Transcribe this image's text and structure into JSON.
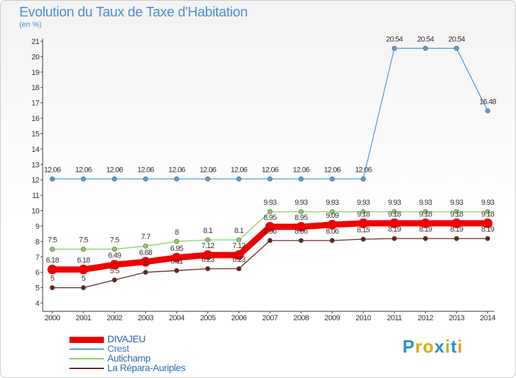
{
  "title": "Evolution du Taux de Taxe d'Habitation",
  "unit_label": "(en %)",
  "colors": {
    "title": "#4a8fd4",
    "axis": "#333333",
    "grid": "#d8d8d8"
  },
  "logo": {
    "text": "Proxiti",
    "colors": [
      "#2a8fd0",
      "#e0a800",
      "#e0a800",
      "#2a8fd0",
      "#9bc820",
      "#2a8fd0",
      "#e0a800"
    ]
  },
  "chart_data": {
    "type": "line",
    "title": "Evolution du Taux de Taxe d'Habitation",
    "ylabel": "(en %)",
    "xlabel": "",
    "x": [
      "2000",
      "2001",
      "2002",
      "2003",
      "2004",
      "2005",
      "2006",
      "2007",
      "2008",
      "2009",
      "2010",
      "2011",
      "2012",
      "2013",
      "2014"
    ],
    "ylim": [
      4,
      21
    ],
    "yticks": [
      4,
      5,
      6,
      7,
      8,
      9,
      10,
      11,
      12,
      13,
      14,
      15,
      16,
      17,
      18,
      19,
      20,
      21
    ],
    "grid": false,
    "legend_position": "bottom-left",
    "series": [
      {
        "name": "DIVAJEU",
        "color": "#ee0000",
        "style": "thick",
        "values": [
          6.18,
          6.18,
          6.49,
          6.68,
          6.95,
          7.12,
          7.12,
          8.95,
          8.95,
          9.09,
          9.18,
          9.18,
          9.18,
          9.18,
          9.18
        ],
        "labels": [
          "6.18",
          "6.18",
          "6.49",
          "6.68",
          "6.95",
          "7.12",
          "7.12",
          "8.95",
          "8.95",
          "9.09",
          "9.18",
          "9.18",
          "9.18",
          "9.18",
          "9.18"
        ]
      },
      {
        "name": "Crest",
        "color": "#5b9bd5",
        "style": "thin",
        "values": [
          12.06,
          12.06,
          12.06,
          12.06,
          12.06,
          12.06,
          12.06,
          12.06,
          12.06,
          12.06,
          12.06,
          20.54,
          20.54,
          20.54,
          16.48
        ],
        "labels": [
          "12.06",
          "12.06",
          "12.06",
          "12.06",
          "12.06",
          "12.06",
          "12.06",
          "12.06",
          "12.06",
          "12.06",
          "12.06",
          "20.54",
          "20.54",
          "20.54",
          "16.48"
        ]
      },
      {
        "name": "Autichamp",
        "color": "#88d060",
        "style": "thin",
        "values": [
          7.5,
          7.5,
          7.5,
          7.7,
          8,
          8.1,
          8.1,
          9.93,
          9.93,
          9.93,
          9.93,
          9.93,
          9.93,
          9.93,
          9.93
        ],
        "labels": [
          "7.5",
          "7.5",
          "7.5",
          "7.7",
          "8",
          "8.1",
          "8.1",
          "9.93",
          "9.93",
          "9.93",
          "9.93",
          "9.93",
          "9.93",
          "9.93",
          "9.93"
        ]
      },
      {
        "name": "La Répara-Auriples",
        "color": "#6b2020",
        "style": "thin",
        "values": [
          5,
          5,
          5.5,
          6,
          6.11,
          6.23,
          6.23,
          8.06,
          8.06,
          8.06,
          8.15,
          8.19,
          8.19,
          8.19,
          8.19
        ],
        "labels": [
          "5",
          "5",
          "5.5",
          "6",
          "6.11",
          "6.23",
          "6.23",
          "8.06",
          "8.06",
          "8.06",
          "8.15",
          "8.19",
          "8.19",
          "8.19",
          "8.19"
        ]
      }
    ]
  }
}
